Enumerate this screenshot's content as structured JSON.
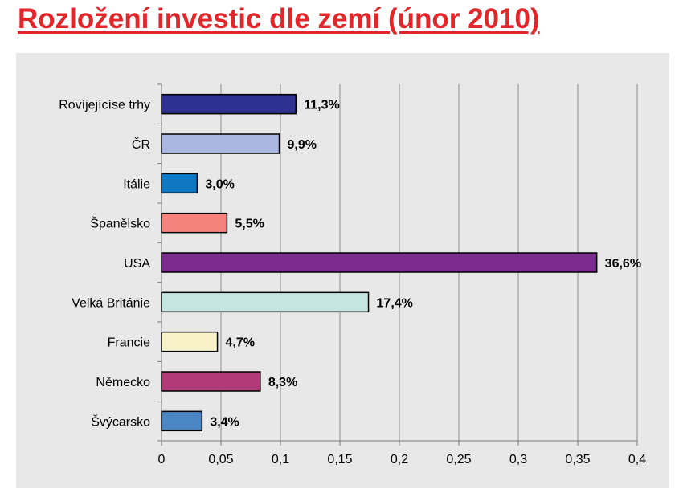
{
  "title": "Rozložení investic dle zemí (únor 2010)",
  "chart_data": {
    "type": "bar",
    "orientation": "horizontal",
    "categories": [
      "Rovíjejícíse trhy",
      "ČR",
      "Itálie",
      "Španělsko",
      "USA",
      "Velká Británie",
      "Francie",
      "Německo",
      "Švýcarsko"
    ],
    "values": [
      0.113,
      0.099,
      0.03,
      0.055,
      0.366,
      0.174,
      0.047,
      0.083,
      0.034
    ],
    "value_labels": [
      "11,3%",
      "9,9%",
      "3,0%",
      "5,5%",
      "36,6%",
      "17,4%",
      "4,7%",
      "8,3%",
      "3,4%"
    ],
    "colors": [
      "#2e3192",
      "#a9b6e0",
      "#0f78c2",
      "#f4837d",
      "#7b2a8e",
      "#c4e6e1",
      "#f7f2c8",
      "#b33a78",
      "#4a86c4"
    ],
    "x_ticks": [
      "0",
      "0,05",
      "0,1",
      "0,15",
      "0,2",
      "0,25",
      "0,3",
      "0,35",
      "0,4"
    ],
    "xlim": [
      0,
      0.4
    ],
    "grid": "vertical",
    "legend": "none"
  }
}
